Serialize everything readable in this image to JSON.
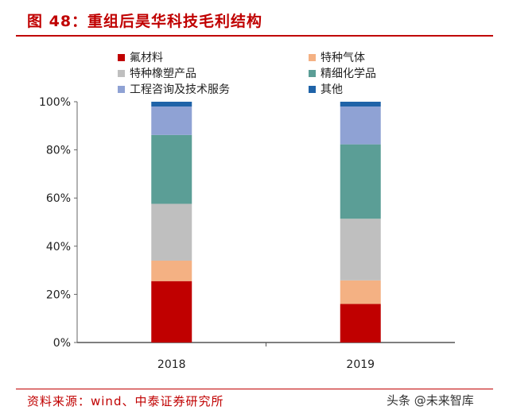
{
  "title": "图 48：重组后昊华科技毛利结构",
  "source": "资料来源：wind、中泰证券研究所",
  "watermark": "头条 @未来智库",
  "chart_data": {
    "type": "bar",
    "stacked": true,
    "title": "",
    "categories": [
      "2018",
      "2019"
    ],
    "ylim": [
      0,
      100
    ],
    "yticks": [
      "0%",
      "20%",
      "40%",
      "60%",
      "80%",
      "100%"
    ],
    "legend_position": "top",
    "series": [
      {
        "name": "氟材料",
        "color": "#c00000",
        "values": [
          25.5,
          16.0
        ]
      },
      {
        "name": "特种气体",
        "color": "#f4b183",
        "values": [
          8.5,
          9.8
        ]
      },
      {
        "name": "特种橡塑产品",
        "color": "#bfbfbf",
        "values": [
          23.6,
          25.6
        ]
      },
      {
        "name": "精细化学品",
        "color": "#5b9e96",
        "values": [
          28.6,
          30.9
        ]
      },
      {
        "name": "工程咨询及技术服务",
        "color": "#8fa2d4",
        "values": [
          11.8,
          15.7
        ]
      },
      {
        "name": "其他",
        "color": "#1f63a8",
        "values": [
          2.0,
          2.0
        ]
      }
    ]
  }
}
